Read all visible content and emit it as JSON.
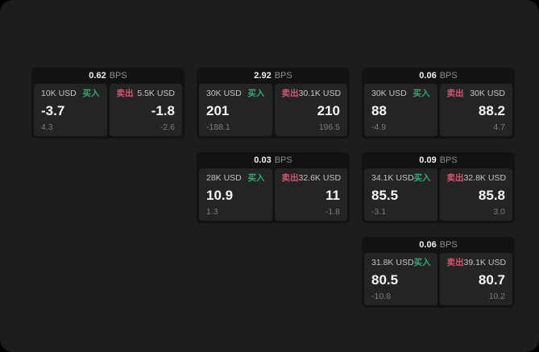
{
  "window": {
    "background": "#1d1d1d",
    "outer_background": "#000000"
  },
  "labels": {
    "bps_unit": "BPS",
    "buy": "买入",
    "sell": "卖出"
  },
  "colors": {
    "buy_green": "#35a873",
    "sell_red": "#d5566e",
    "card_bg": "#121212",
    "panel_bg": "#242424"
  },
  "cards": [
    {
      "bps": "0.62",
      "buy": {
        "amount": "10K USD",
        "value": "-3.7",
        "sub": "4.3"
      },
      "sell": {
        "amount": "5.5K USD",
        "value": "-1.8",
        "sub": "-2.6"
      }
    },
    {
      "bps": "2.92",
      "buy": {
        "amount": "30K USD",
        "value": "201",
        "sub": "-188.1"
      },
      "sell": {
        "amount": "30.1K USD",
        "value": "210",
        "sub": "196.5"
      }
    },
    {
      "bps": "0.06",
      "buy": {
        "amount": "30K USD",
        "value": "88",
        "sub": "-4.9"
      },
      "sell": {
        "amount": "30K USD",
        "value": "88.2",
        "sub": "4.7"
      }
    },
    {
      "bps": "0.03",
      "buy": {
        "amount": "28K USD",
        "value": "10.9",
        "sub": "1.3"
      },
      "sell": {
        "amount": "32.6K USD",
        "value": "11",
        "sub": "-1.8"
      }
    },
    {
      "bps": "0.09",
      "buy": {
        "amount": "34.1K USD",
        "value": "85.5",
        "sub": "-3.1"
      },
      "sell": {
        "amount": "32.8K USD",
        "value": "85.8",
        "sub": "3.0"
      }
    },
    {
      "bps": "0.06",
      "buy": {
        "amount": "31.8K USD",
        "value": "80.5",
        "sub": "-10.8"
      },
      "sell": {
        "amount": "39.1K USD",
        "value": "80.7",
        "sub": "10.2"
      }
    }
  ]
}
